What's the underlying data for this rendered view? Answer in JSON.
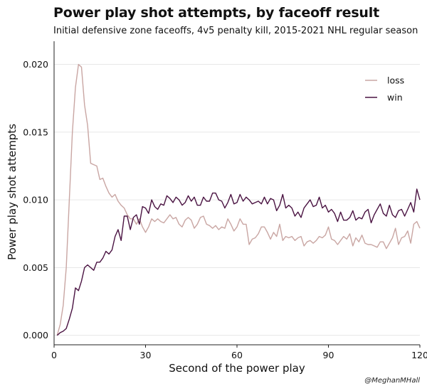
{
  "header": {
    "title": "Power play shot attempts, by faceoff result",
    "subtitle": "Initial defensive zone faceoffs, 4v5 penalty kill, 2015-2021 NHL regular season"
  },
  "caption": "@MeghanMHall",
  "colors": {
    "loss": "#c9a6a3",
    "win": "#4a1342",
    "grid": "#e6e6e6",
    "axis": "#222222"
  },
  "chart_data": {
    "type": "line",
    "title": "Power play shot attempts, by faceoff result",
    "subtitle": "Initial defensive zone faceoffs, 4v5 penalty kill, 2015-2021 NHL regular season",
    "xlabel": "Second of the power play",
    "ylabel": "Power play shot attempts",
    "xlim": [
      0,
      120
    ],
    "ylim": [
      -0.0007,
      0.0215
    ],
    "xticks": [
      0,
      30,
      60,
      90,
      120
    ],
    "xtick_labels": [
      "0",
      "30",
      "60",
      "90",
      "120"
    ],
    "yticks": [
      0,
      0.005,
      0.01,
      0.015,
      0.02
    ],
    "ytick_labels": [
      "0.000",
      "0.005",
      "0.010",
      "0.015",
      "0.020"
    ],
    "grid": true,
    "legend_position": "top-right",
    "series": [
      {
        "name": "loss",
        "color": "#c9a6a3",
        "x": [
          1,
          2,
          3,
          4,
          5,
          6,
          7,
          8,
          9,
          10,
          11,
          12,
          13,
          14,
          15,
          16,
          17,
          18,
          19,
          20,
          21,
          22,
          23,
          24,
          25,
          26,
          27,
          28,
          29,
          30,
          31,
          32,
          33,
          34,
          35,
          36,
          37,
          38,
          39,
          40,
          41,
          42,
          43,
          44,
          45,
          46,
          47,
          48,
          49,
          50,
          51,
          52,
          53,
          54,
          55,
          56,
          57,
          58,
          59,
          60,
          61,
          62,
          63,
          64,
          65,
          66,
          67,
          68,
          69,
          70,
          71,
          72,
          73,
          74,
          75,
          76,
          77,
          78,
          79,
          80,
          81,
          82,
          83,
          84,
          85,
          86,
          87,
          88,
          89,
          90,
          91,
          92,
          93,
          94,
          95,
          96,
          97,
          98,
          99,
          100,
          101,
          102,
          103,
          104,
          105,
          106,
          107,
          108,
          109,
          110,
          111,
          112,
          113,
          114,
          115,
          116,
          117,
          118,
          119,
          120
        ],
        "y": [
          0.0,
          0.0008,
          0.0022,
          0.005,
          0.01,
          0.015,
          0.0183,
          0.02,
          0.0198,
          0.017,
          0.0155,
          0.0127,
          0.0126,
          0.0125,
          0.0115,
          0.0116,
          0.011,
          0.0105,
          0.0102,
          0.0104,
          0.0099,
          0.0096,
          0.0094,
          0.0089,
          0.0086,
          0.0086,
          0.0082,
          0.0086,
          0.008,
          0.0076,
          0.008,
          0.0086,
          0.0084,
          0.0086,
          0.0084,
          0.0083,
          0.0086,
          0.0089,
          0.0086,
          0.0087,
          0.0082,
          0.008,
          0.0085,
          0.0087,
          0.0085,
          0.0079,
          0.0082,
          0.0087,
          0.0088,
          0.0082,
          0.0081,
          0.0079,
          0.0081,
          0.0078,
          0.008,
          0.0079,
          0.0086,
          0.0082,
          0.0077,
          0.008,
          0.0086,
          0.0082,
          0.0082,
          0.0067,
          0.0071,
          0.0072,
          0.0075,
          0.008,
          0.008,
          0.0076,
          0.0071,
          0.0076,
          0.0073,
          0.0082,
          0.007,
          0.0073,
          0.0072,
          0.0073,
          0.007,
          0.0072,
          0.0073,
          0.0066,
          0.0069,
          0.007,
          0.0068,
          0.007,
          0.0073,
          0.0072,
          0.0074,
          0.008,
          0.0071,
          0.007,
          0.0067,
          0.007,
          0.0073,
          0.0071,
          0.0075,
          0.0066,
          0.0072,
          0.0069,
          0.0074,
          0.0068,
          0.0067,
          0.0067,
          0.0066,
          0.0065,
          0.0069,
          0.0069,
          0.0064,
          0.0068,
          0.0072,
          0.0079,
          0.0067,
          0.0072,
          0.0073,
          0.0077,
          0.0068,
          0.0082,
          0.0084,
          0.0079
        ]
      },
      {
        "name": "win",
        "color": "#4a1342",
        "x": [
          1,
          2,
          3,
          4,
          5,
          6,
          7,
          8,
          9,
          10,
          11,
          12,
          13,
          14,
          15,
          16,
          17,
          18,
          19,
          20,
          21,
          22,
          23,
          24,
          25,
          26,
          27,
          28,
          29,
          30,
          31,
          32,
          33,
          34,
          35,
          36,
          37,
          38,
          39,
          40,
          41,
          42,
          43,
          44,
          45,
          46,
          47,
          48,
          49,
          50,
          51,
          52,
          53,
          54,
          55,
          56,
          57,
          58,
          59,
          60,
          61,
          62,
          63,
          64,
          65,
          66,
          67,
          68,
          69,
          70,
          71,
          72,
          73,
          74,
          75,
          76,
          77,
          78,
          79,
          80,
          81,
          82,
          83,
          84,
          85,
          86,
          87,
          88,
          89,
          90,
          91,
          92,
          93,
          94,
          95,
          96,
          97,
          98,
          99,
          100,
          101,
          102,
          103,
          104,
          105,
          106,
          107,
          108,
          109,
          110,
          111,
          112,
          113,
          114,
          115,
          116,
          117,
          118,
          119,
          120
        ],
        "y": [
          0.0,
          0.0002,
          0.0003,
          0.0005,
          0.0012,
          0.002,
          0.0035,
          0.0033,
          0.004,
          0.005,
          0.0052,
          0.005,
          0.0048,
          0.0054,
          0.0054,
          0.0057,
          0.0062,
          0.006,
          0.0063,
          0.0073,
          0.0078,
          0.007,
          0.0088,
          0.0088,
          0.0078,
          0.0087,
          0.0089,
          0.0082,
          0.0095,
          0.0094,
          0.009,
          0.01,
          0.0095,
          0.0093,
          0.0097,
          0.0096,
          0.0103,
          0.0101,
          0.0098,
          0.0102,
          0.01,
          0.0096,
          0.0098,
          0.0103,
          0.0099,
          0.0102,
          0.0096,
          0.0096,
          0.0102,
          0.0099,
          0.0099,
          0.0105,
          0.0105,
          0.01,
          0.0099,
          0.0094,
          0.0098,
          0.0104,
          0.0097,
          0.0098,
          0.0104,
          0.0099,
          0.0102,
          0.01,
          0.0097,
          0.0098,
          0.0099,
          0.0097,
          0.0102,
          0.0097,
          0.0101,
          0.01,
          0.0092,
          0.0096,
          0.0104,
          0.0094,
          0.0096,
          0.0094,
          0.0088,
          0.0091,
          0.0087,
          0.0094,
          0.0097,
          0.01,
          0.0095,
          0.0096,
          0.0102,
          0.0094,
          0.0096,
          0.0091,
          0.0093,
          0.009,
          0.0084,
          0.0091,
          0.0085,
          0.0085,
          0.0087,
          0.0092,
          0.0085,
          0.0087,
          0.0086,
          0.0091,
          0.0093,
          0.0083,
          0.0089,
          0.0093,
          0.0097,
          0.009,
          0.0088,
          0.0096,
          0.0089,
          0.0087,
          0.0092,
          0.0093,
          0.0088,
          0.0093,
          0.0098,
          0.0091,
          0.0108,
          0.01
        ]
      }
    ]
  }
}
